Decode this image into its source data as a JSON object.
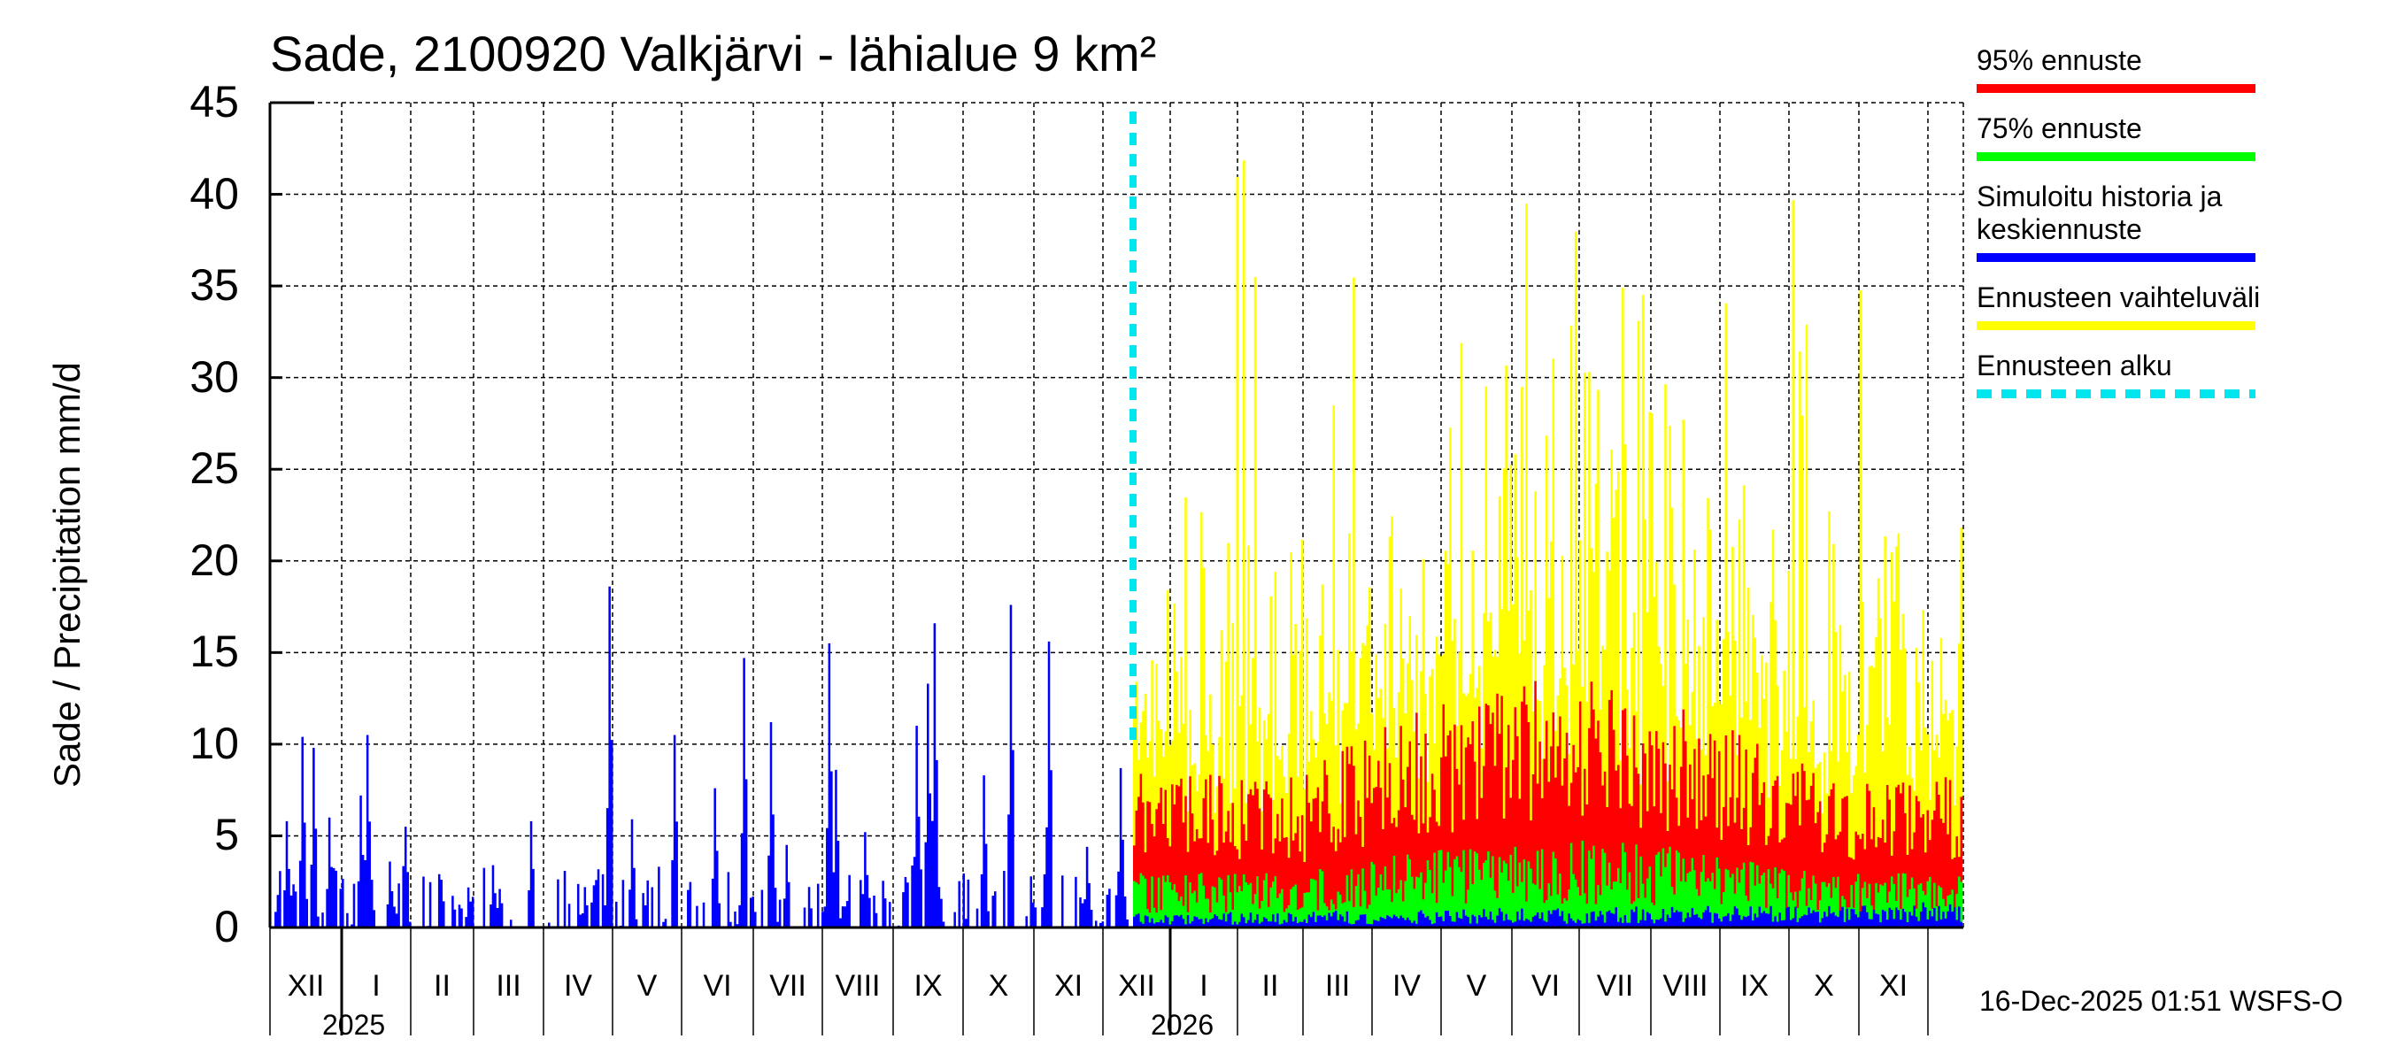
{
  "chart_data": {
    "type": "bar",
    "title": "Sade, 2100920 Valkjärvi - lähialue 9 km²",
    "ylabel": "Sade / Precipitation   mm/d",
    "xlabel": "",
    "ylim": [
      0,
      45
    ],
    "yticks": [
      "0",
      "5",
      "10",
      "15",
      "20",
      "25",
      "30",
      "35",
      "40",
      "45"
    ],
    "grid": true,
    "legend_position": "right",
    "months": [
      {
        "label": "XII",
        "start": "2024-12"
      },
      {
        "label": "I",
        "start": "2025-01"
      },
      {
        "label": "II",
        "start": "2025-02"
      },
      {
        "label": "III",
        "start": "2025-03"
      },
      {
        "label": "IV",
        "start": "2025-04"
      },
      {
        "label": "V",
        "start": "2025-05"
      },
      {
        "label": "VI",
        "start": "2025-06"
      },
      {
        "label": "VII",
        "start": "2025-07"
      },
      {
        "label": "VIII",
        "start": "2025-08"
      },
      {
        "label": "IX",
        "start": "2025-09"
      },
      {
        "label": "X",
        "start": "2025-10"
      },
      {
        "label": "XI",
        "start": "2025-11"
      },
      {
        "label": "XII",
        "start": "2025-12"
      },
      {
        "label": "I",
        "start": "2026-01"
      },
      {
        "label": "II",
        "start": "2026-02"
      },
      {
        "label": "III",
        "start": "2026-03"
      },
      {
        "label": "IV",
        "start": "2026-04"
      },
      {
        "label": "V",
        "start": "2026-05"
      },
      {
        "label": "VI",
        "start": "2026-06"
      },
      {
        "label": "VII",
        "start": "2026-07"
      },
      {
        "label": "VIII",
        "start": "2026-08"
      },
      {
        "label": "IX",
        "start": "2026-09"
      },
      {
        "label": "X",
        "start": "2026-10"
      },
      {
        "label": "XI",
        "start": "2026-11"
      }
    ],
    "years": [
      {
        "label": "2025",
        "month_index": 1
      },
      {
        "label": "2026",
        "month_index": 13
      }
    ],
    "forecast_start": "2025-12-16",
    "history_peaks_mm": [
      {
        "date": "2024-12-03",
        "value": 5.8
      },
      {
        "date": "2024-12-10",
        "value": 10.4
      },
      {
        "date": "2024-12-15",
        "value": 9.8
      },
      {
        "date": "2024-12-22",
        "value": 6.0
      },
      {
        "date": "2025-01-05",
        "value": 7.2
      },
      {
        "date": "2025-01-08",
        "value": 10.5
      },
      {
        "date": "2025-01-18",
        "value": 3.6
      },
      {
        "date": "2025-01-25",
        "value": 5.5
      },
      {
        "date": "2025-02-10",
        "value": 2.6
      },
      {
        "date": "2025-03-05",
        "value": 3.4
      },
      {
        "date": "2025-03-22",
        "value": 5.8
      },
      {
        "date": "2025-04-15",
        "value": 2.2
      },
      {
        "date": "2025-04-26",
        "value": 18.6
      },
      {
        "date": "2025-05-06",
        "value": 5.9
      },
      {
        "date": "2025-05-25",
        "value": 10.5
      },
      {
        "date": "2025-06-12",
        "value": 7.6
      },
      {
        "date": "2025-06-25",
        "value": 14.7
      },
      {
        "date": "2025-07-07",
        "value": 11.2
      },
      {
        "date": "2025-07-14",
        "value": 4.5
      },
      {
        "date": "2025-08-02",
        "value": 15.5
      },
      {
        "date": "2025-08-05",
        "value": 8.6
      },
      {
        "date": "2025-08-18",
        "value": 5.2
      },
      {
        "date": "2025-09-10",
        "value": 11.0
      },
      {
        "date": "2025-09-15",
        "value": 13.3
      },
      {
        "date": "2025-09-18",
        "value": 16.6
      },
      {
        "date": "2025-10-10",
        "value": 8.3
      },
      {
        "date": "2025-10-22",
        "value": 17.6
      },
      {
        "date": "2025-11-08",
        "value": 15.6
      },
      {
        "date": "2025-11-25",
        "value": 4.4
      },
      {
        "date": "2025-12-10",
        "value": 8.7
      }
    ],
    "series": [
      {
        "name": "95% ennuste",
        "color": "#ff0000",
        "typical_range_mm": [
          3,
          13
        ]
      },
      {
        "name": "75% ennuste",
        "color": "#00ff00",
        "typical_range_mm": [
          0.5,
          5.5
        ]
      },
      {
        "name": "Simuloitu historia ja keskiennuste",
        "color": "#0000ff",
        "typical_range_mm": [
          0,
          1.5
        ]
      },
      {
        "name": "Ennusteen vaihteluväli",
        "color": "#ffff00",
        "max_mm": 44.5
      },
      {
        "name": "Ennusteen alku",
        "color": "#00e5ee",
        "style": "dashed-vertical"
      }
    ]
  },
  "legend": [
    {
      "label": "95% ennuste",
      "color": "#ff0000",
      "dashed": false
    },
    {
      "label": "75% ennuste",
      "color": "#00ff00",
      "dashed": false
    },
    {
      "label": "Simuloitu historia ja keskiennuste",
      "color": "#0000ff",
      "dashed": false
    },
    {
      "label": "Ennusteen vaihteluväli",
      "color": "#ffff00",
      "dashed": false
    },
    {
      "label": "Ennusteen alku",
      "color": "#00e5ee",
      "dashed": true
    }
  ],
  "footer": "16-Dec-2025 01:51 WSFS-O"
}
